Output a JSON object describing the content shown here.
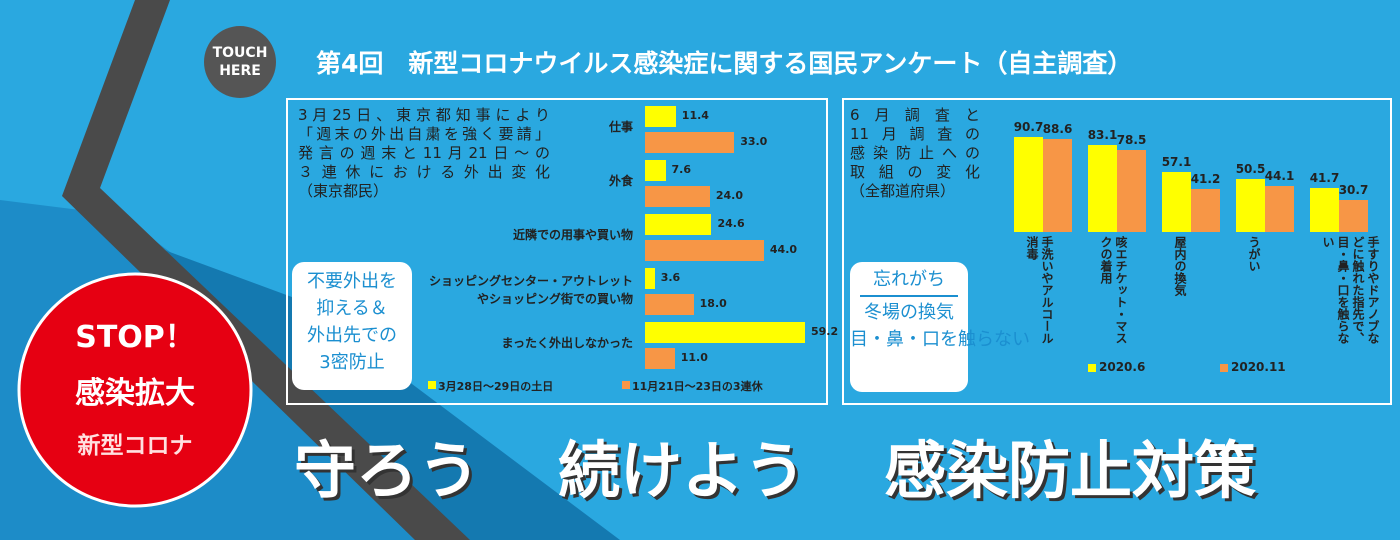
{
  "touch": [
    "TOUCH",
    "HERE"
  ],
  "title": "第4回　新型コロナウイルス感染症に関する国民アンケート（自主調査）",
  "badge": [
    "STOP！",
    "感染拡大",
    "新型コロナ"
  ],
  "slogan": [
    "守ろう",
    "続けよう",
    "感染防止対策"
  ],
  "chart_data": [
    {
      "type": "hbar",
      "title": [
        "3月25日、東京都知事により",
        "「週末の外出自粛を強く要請」",
        "発言の週末と11月21日～の",
        "３連休における外出変化",
        "（東京都民）"
      ],
      "categories": [
        "仕事",
        "外食",
        "近隣での用事や買い物",
        "ショッピングセンター・アウトレット\nやショッピング街での買い物",
        "まったく外出しなかった"
      ],
      "series": [
        {
          "name": "3月28日～29日の土日",
          "color": "#ffff00",
          "values": [
            11.4,
            7.6,
            24.6,
            3.6,
            59.2
          ]
        },
        {
          "name": "11月21日～23日の3連休",
          "color": "#f79646",
          "values": [
            33,
            24,
            44,
            18,
            11
          ],
          "value_labels": [
            "33.0",
            "24.0",
            "44.0",
            "18.0",
            "11.0"
          ]
        }
      ],
      "note": [
        "不要外出を",
        "抑える＆",
        "外出先での",
        "3密防止"
      ]
    },
    {
      "type": "bar",
      "title": [
        "6月調査と",
        "11月調査の",
        "感染防止への",
        "取組の変化",
        "（全都道府県）"
      ],
      "categories": [
        "手洗いやアルコール消毒",
        "咳エチケット・マスクの着用",
        "屋内の換気",
        "うがい",
        "手すりやドアノブなどに触れた指先で、目・鼻・口を触らない"
      ],
      "series": [
        {
          "name": "2020.6",
          "color": "#ffff00",
          "values": [
            90.7,
            83.1,
            57.1,
            50.5,
            41.7
          ]
        },
        {
          "name": "2020.11",
          "color": "#f79646",
          "values": [
            88.6,
            78.5,
            41.2,
            44.1,
            30.7
          ]
        }
      ],
      "note": [
        "忘れがち",
        "冬場の換気",
        "目・鼻・口を触らない"
      ]
    }
  ]
}
